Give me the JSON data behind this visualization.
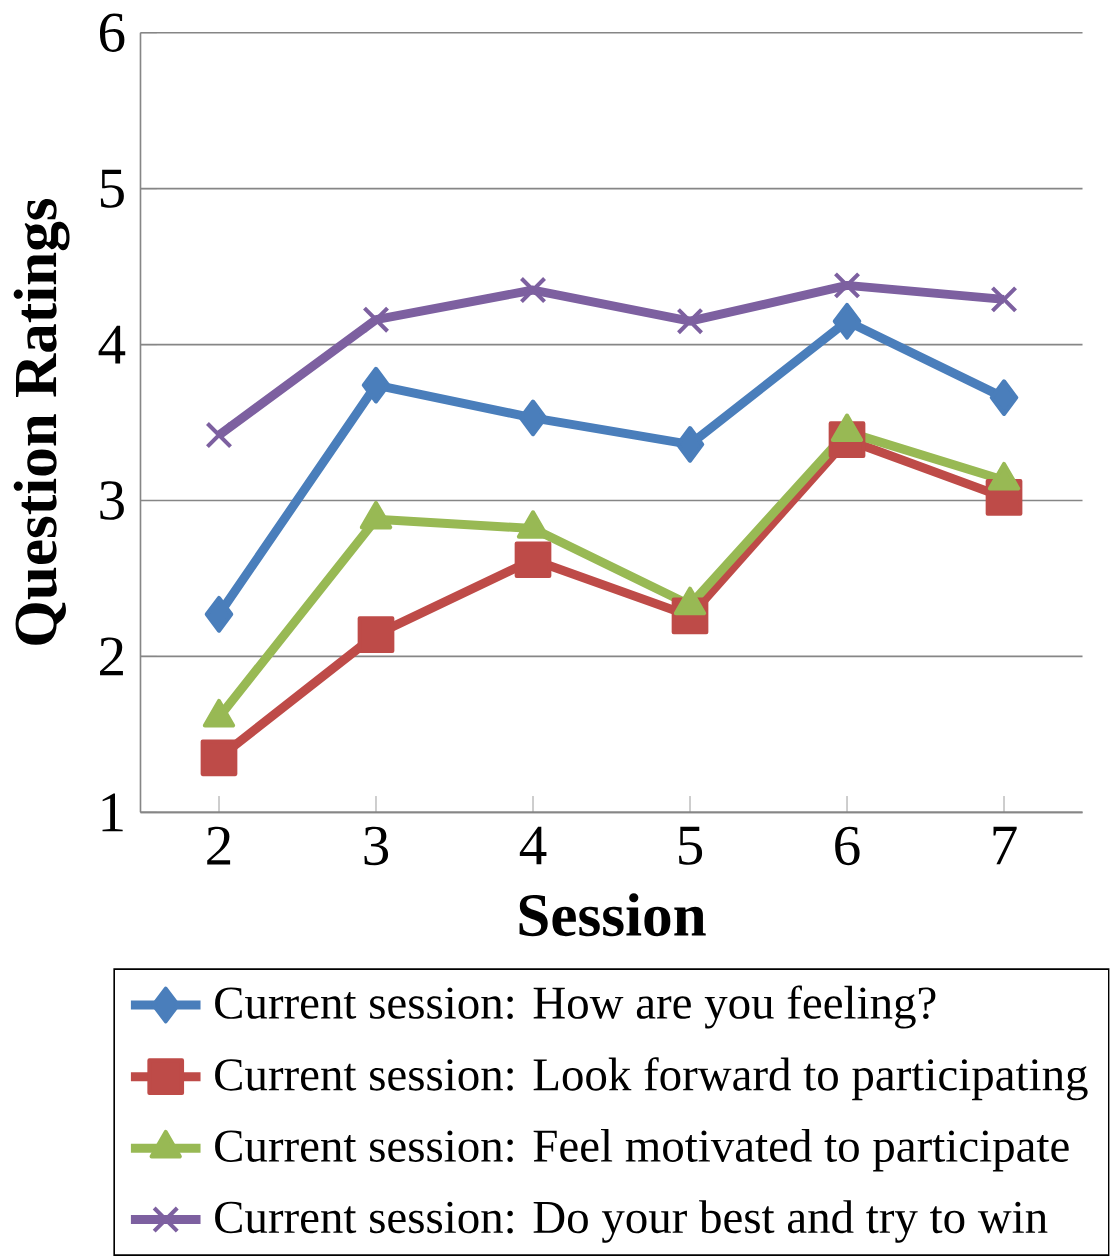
{
  "chart_data": {
    "type": "line",
    "xlabel": "Session",
    "ylabel": "Question Ratings",
    "categories": [
      "2",
      "3",
      "4",
      "5",
      "6",
      "7"
    ],
    "series": [
      {
        "name": "Current session: How are you feeling?",
        "color": "#4a7ebb",
        "marker": "diamond",
        "values": [
          2.27,
          3.74,
          3.53,
          3.36,
          4.15,
          3.66
        ]
      },
      {
        "name": "Current session: Look forward to participating",
        "color": "#be4b48",
        "marker": "square",
        "values": [
          1.35,
          2.14,
          2.62,
          2.26,
          3.39,
          3.02
        ]
      },
      {
        "name": "Current session: Feel motivated to participate",
        "color": "#98b954",
        "marker": "triangle",
        "values": [
          1.61,
          2.88,
          2.82,
          2.33,
          3.44,
          3.13
        ]
      },
      {
        "name": "Current session: Do your best and try to win",
        "color": "#7d60a0",
        "marker": "cross",
        "values": [
          3.42,
          4.16,
          4.35,
          4.15,
          4.38,
          4.29
        ]
      }
    ],
    "ylim": [
      1,
      6
    ],
    "yticks": [
      1,
      2,
      3,
      4,
      5,
      6
    ],
    "grid": "y",
    "legend": "bottom"
  }
}
